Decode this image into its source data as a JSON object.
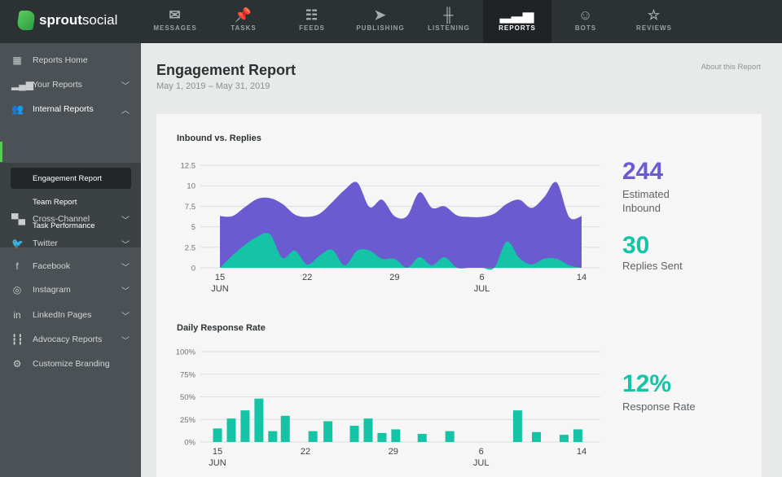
{
  "brand": {
    "name_bold": "sprout",
    "name_light": "social"
  },
  "nav": [
    {
      "label": "MESSAGES",
      "icon": "envelope-icon",
      "glyph": "✉"
    },
    {
      "label": "TASKS",
      "icon": "pin-icon",
      "glyph": "📌"
    },
    {
      "label": "FEEDS",
      "icon": "feeds-icon",
      "glyph": "☷"
    },
    {
      "label": "PUBLISHING",
      "icon": "paper-plane-icon",
      "glyph": "➤"
    },
    {
      "label": "LISTENING",
      "icon": "waveform-icon",
      "glyph": "╫"
    },
    {
      "label": "REPORTS",
      "icon": "bar-chart-icon",
      "glyph": "▂▃▅",
      "active": true
    },
    {
      "label": "BOTS",
      "icon": "robot-icon",
      "glyph": "☺"
    },
    {
      "label": "REVIEWS",
      "icon": "star-icon",
      "glyph": "☆"
    }
  ],
  "sidebar": {
    "items": [
      {
        "label": "Reports Home",
        "icon": "grid-icon",
        "glyph": "▦"
      },
      {
        "label": "Your Reports",
        "icon": "bar-chart-icon",
        "glyph": "▂▄▆",
        "chevron": "﹀"
      },
      {
        "label": "Internal Reports",
        "icon": "users-icon",
        "glyph": "👥",
        "chevron": "︿"
      },
      {
        "label": "Cross-Channel",
        "icon": "chat-icon",
        "glyph": "▀▄",
        "chevron": "﹀"
      },
      {
        "label": "Twitter",
        "icon": "twitter-icon",
        "glyph": "🐦",
        "chevron": "﹀"
      },
      {
        "label": "Facebook",
        "icon": "facebook-icon",
        "glyph": "f",
        "chevron": "﹀"
      },
      {
        "label": "Instagram",
        "icon": "instagram-icon",
        "glyph": "◎",
        "chevron": "﹀"
      },
      {
        "label": "LinkedIn Pages",
        "icon": "linkedin-icon",
        "glyph": "in",
        "chevron": "﹀"
      },
      {
        "label": "Advocacy Reports",
        "icon": "advocacy-icon",
        "glyph": "┇┇",
        "chevron": "﹀"
      },
      {
        "label": "Customize Branding",
        "icon": "gear-icon",
        "glyph": "⚙"
      }
    ],
    "sub_items": [
      {
        "label": "Engagement Report",
        "active": true
      },
      {
        "label": "Team Report"
      },
      {
        "label": "Task Performance"
      }
    ]
  },
  "page": {
    "title": "Engagement Report",
    "date_range": "May 1, 2019 – May 31, 2019",
    "about_link": "About this Report"
  },
  "stats": {
    "inbound_value": "244",
    "inbound_label1": "Estimated",
    "inbound_label2": "Inbound",
    "replies_value": "30",
    "replies_label": "Replies Sent",
    "rate_value": "12%",
    "rate_label": "Response Rate"
  },
  "colors": {
    "purple": "#6b5bd0",
    "teal": "#15c3a6"
  },
  "chart_data": [
    {
      "type": "area",
      "title": "Inbound vs. Replies",
      "x_ticks": [
        {
          "day": 0,
          "label": "15",
          "sub": "JUN"
        },
        {
          "day": 7,
          "label": "22"
        },
        {
          "day": 14,
          "label": "29"
        },
        {
          "day": 21,
          "label": "6",
          "sub": "JUL"
        },
        {
          "day": 29,
          "label": "14"
        }
      ],
      "y_ticks": [
        "0",
        "2.5",
        "5",
        "7.5",
        "10",
        "12.5"
      ],
      "ylim": [
        0,
        12.5
      ],
      "series": [
        {
          "name": "Inbound",
          "values": [
            6.3,
            6.3,
            7.4,
            8.4,
            8.5,
            7.8,
            6.5,
            6.2,
            6.6,
            8.0,
            9.5,
            10.4,
            7.4,
            8.3,
            6.3,
            6.3,
            9.2,
            7.3,
            7.5,
            6.4,
            6.2,
            6.2,
            6.6,
            7.8,
            8.3,
            7.3,
            8.6,
            10.4,
            6.2,
            6.3
          ]
        },
        {
          "name": "Replies",
          "values": [
            0,
            1.5,
            2.8,
            3.8,
            4.1,
            1.2,
            2.1,
            0.4,
            1.5,
            2.2,
            0.3,
            2.1,
            2.1,
            1.1,
            1.1,
            0,
            1.3,
            0.3,
            1.3,
            0,
            0,
            0,
            0,
            3.2,
            1.2,
            0.4,
            1.1,
            1.1,
            0.3,
            0
          ]
        }
      ]
    },
    {
      "type": "bar",
      "title": "Daily Response Rate",
      "x_ticks": [
        {
          "day": 0,
          "label": "15",
          "sub": "JUN"
        },
        {
          "day": 7,
          "label": "22"
        },
        {
          "day": 14,
          "label": "29"
        },
        {
          "day": 21,
          "label": "6",
          "sub": "JUL"
        },
        {
          "day": 29,
          "label": "14"
        }
      ],
      "y_ticks": [
        "0%",
        "25%",
        "50%",
        "75%",
        "100%"
      ],
      "ylim": [
        0,
        100
      ],
      "bars": [
        {
          "day": 0,
          "value": 15
        },
        {
          "day": 1.1,
          "value": 26
        },
        {
          "day": 2.2,
          "value": 35
        },
        {
          "day": 3.3,
          "value": 48
        },
        {
          "day": 4.4,
          "value": 12
        },
        {
          "day": 5.4,
          "value": 29
        },
        {
          "day": 7.6,
          "value": 12
        },
        {
          "day": 8.8,
          "value": 23
        },
        {
          "day": 10.9,
          "value": 18
        },
        {
          "day": 12,
          "value": 26
        },
        {
          "day": 13.1,
          "value": 10
        },
        {
          "day": 14.2,
          "value": 14
        },
        {
          "day": 16.3,
          "value": 9
        },
        {
          "day": 18.5,
          "value": 12
        },
        {
          "day": 23.9,
          "value": 35
        },
        {
          "day": 25.4,
          "value": 11
        },
        {
          "day": 27.6,
          "value": 8
        },
        {
          "day": 28.7,
          "value": 14
        }
      ]
    }
  ]
}
